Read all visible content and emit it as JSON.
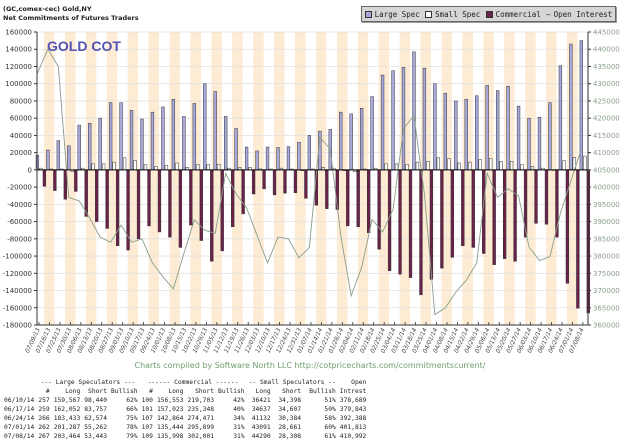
{
  "header": {
    "line1": "(GC,comex-cec) Gold,NY",
    "line2": "Net Commitments of Futures Traders"
  },
  "legend": [
    {
      "label": "Large Spec",
      "color": "#a9a8dc",
      "icon": "square"
    },
    {
      "label": "Small Spec",
      "color": "#ffffff",
      "icon": "square"
    },
    {
      "label": "Commercial",
      "color": "#6b2149",
      "icon": "square"
    },
    {
      "label": "Open Interest",
      "color": "#8a9e8a",
      "icon": "dash"
    }
  ],
  "credit": "Charts compiled by Software North LLC  http://cotpricecharts.com/commitmentscurrent/",
  "chart_data": {
    "type": "bar",
    "title": "GOLD COT",
    "ylim": [
      -180000,
      160000
    ],
    "y2lim": [
      360000,
      445000
    ],
    "yticks": [
      160000,
      140000,
      120000,
      100000,
      80000,
      60000,
      40000,
      20000,
      0,
      -20000,
      -40000,
      -60000,
      -80000,
      -100000,
      -120000,
      -140000,
      -160000,
      -180000
    ],
    "y2ticks": [
      445000,
      440000,
      435000,
      430000,
      425000,
      420000,
      415000,
      410000,
      405000,
      400000,
      395000,
      390000,
      385000,
      380000,
      375000,
      370000,
      365000,
      360000
    ],
    "grid": true,
    "legend_position": "top-right",
    "categories": [
      "07/09/13",
      "07/16/13",
      "07/23/13",
      "07/30/13",
      "08/06/13",
      "08/13/13",
      "08/20/13",
      "08/27/13",
      "09/03/13",
      "09/10/13",
      "09/17/13",
      "09/24/13",
      "10/01/13",
      "10/08/13",
      "10/15/13",
      "10/22/13",
      "10/29/13",
      "11/05/13",
      "11/12/13",
      "11/19/13",
      "11/26/13",
      "12/03/13",
      "12/10/13",
      "12/17/13",
      "12/24/13",
      "12/31/13",
      "01/07/14",
      "01/14/14",
      "01/21/14",
      "01/28/14",
      "02/04/14",
      "02/11/14",
      "02/18/14",
      "02/25/14",
      "03/04/14",
      "03/11/14",
      "03/18/14",
      "03/25/14",
      "04/01/14",
      "04/08/14",
      "04/15/14",
      "04/22/14",
      "04/29/14",
      "05/06/14",
      "05/13/14",
      "05/20/14",
      "05/27/14",
      "06/03/14",
      "06/10/14",
      "06/17/14",
      "06/24/14",
      "07/01/14",
      "07/08/14"
    ],
    "series": [
      {
        "name": "Large Spec",
        "axis": "left",
        "values": [
          17000,
          23000,
          34000,
          28000,
          52000,
          54000,
          60000,
          78000,
          78000,
          69000,
          59000,
          67000,
          73000,
          82000,
          62000,
          77000,
          100000,
          91000,
          62000,
          48000,
          26500,
          22000,
          26500,
          26000,
          27000,
          32000,
          40000,
          45000,
          47000,
          67000,
          65000,
          71500,
          85000,
          110000,
          115000,
          119000,
          137000,
          118000,
          100000,
          89000,
          80000,
          82000,
          86000,
          98000,
          92000,
          97000,
          74000,
          60000,
          61000,
          78000,
          121000,
          146000,
          150000
        ]
      },
      {
        "name": "Small Spec",
        "axis": "left",
        "values": [
          2000,
          1000,
          1000,
          -2000,
          2000,
          7000,
          7000,
          9000,
          14000,
          11000,
          6000,
          4000,
          5000,
          8000,
          3000,
          6000,
          6000,
          6500,
          2000,
          3000,
          3000,
          1000,
          1000,
          2000,
          1000,
          -1000,
          1000,
          3000,
          2000,
          -1000,
          -2000,
          1000,
          2000,
          7000,
          7000,
          6500,
          9000,
          10000,
          14000,
          13000,
          8000,
          9000,
          12000,
          13000,
          10000,
          10000,
          6000,
          4000,
          2000,
          0,
          10700,
          14400,
          16000
        ]
      },
      {
        "name": "Commercial",
        "axis": "left",
        "values": [
          -19000,
          -24000,
          -34000,
          -25000,
          -54000,
          -60000,
          -68000,
          -88000,
          -93000,
          -80000,
          -65000,
          -72000,
          -78000,
          -90000,
          -64000,
          -82000,
          -106000,
          -94000,
          -66000,
          -51000,
          -28000,
          -22000,
          -29000,
          -27000,
          -26500,
          -33000,
          -41000,
          -45000,
          -46000,
          -65000,
          -66000,
          -73000,
          -92000,
          -117000,
          -121000,
          -125000,
          -145000,
          -127000,
          -114000,
          -101500,
          -88000,
          -90000,
          -97000,
          -110000,
          -103000,
          -106000,
          -78000,
          -62000,
          -63000,
          -78000,
          -131600,
          -160500,
          -166000
        ]
      },
      {
        "name": "Open Interest",
        "axis": "right",
        "type": "line",
        "values": [
          433000,
          440000,
          435000,
          397000,
          396000,
          391000,
          385500,
          384000,
          389000,
          384000,
          385000,
          378000,
          374000,
          370500,
          380700,
          390500,
          387500,
          386600,
          404000,
          398000,
          394000,
          386000,
          378000,
          385500,
          385000,
          379500,
          382500,
          414500,
          411000,
          386000,
          368500,
          376700,
          390600,
          387000,
          393500,
          417000,
          420700,
          398000,
          363000,
          365000,
          369500,
          373000,
          378000,
          404000,
          397000,
          399500,
          397500,
          382600,
          378689,
          379843,
          392388,
          401813,
          410992
        ]
      }
    ]
  },
  "table": {
    "group_headers": [
      "--- Large Speculators ---",
      "------ Commercial ------",
      "-- Small Speculators --",
      "Open"
    ],
    "columns": [
      "#",
      "Long",
      "Short",
      "Bullish",
      "#",
      "Long",
      "Short",
      "Bullish",
      "Long",
      "Short",
      "Bullish",
      "Intrest"
    ],
    "rows": [
      [
        "06/10/14",
        "257",
        "159,567",
        "98,440",
        "62%",
        "100",
        "156,553",
        "219,703",
        "42%",
        "36421",
        "34,398",
        "51%",
        "378,689"
      ],
      [
        "06/17/14",
        "259",
        "162,052",
        "83,757",
        "66%",
        "101",
        "157,023",
        "235,348",
        "40%",
        "34637",
        "34,607",
        "50%",
        "379,843"
      ],
      [
        "06/24/14",
        "266",
        "183,433",
        "62,574",
        "75%",
        "107",
        "142,864",
        "274,471",
        "34%",
        "41132",
        "30,384",
        "58%",
        "392,388"
      ],
      [
        "07/01/14",
        "262",
        "201,287",
        "55,262",
        "78%",
        "107",
        "135,444",
        "295,899",
        "31%",
        "43091",
        "28,661",
        "60%",
        "401,813"
      ],
      [
        "07/08/14",
        "267",
        "203,464",
        "53,443",
        "79%",
        "109",
        "135,998",
        "302,001",
        "31%",
        "44290",
        "28,308",
        "61%",
        "410,992"
      ]
    ]
  }
}
